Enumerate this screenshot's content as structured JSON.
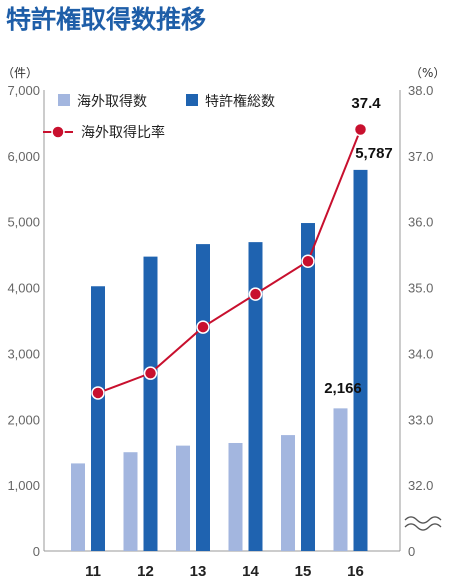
{
  "chart_data": {
    "type": "bar",
    "title": "特許権取得数推移",
    "left_unit": "（件）",
    "right_unit": "（%）",
    "categories": [
      "11",
      "12",
      "13",
      "14",
      "15",
      "16"
    ],
    "y_left_ticks": [
      "7,000",
      "6,000",
      "5,000",
      "4,000",
      "3,000",
      "2,000",
      "1,000",
      "0"
    ],
    "y_left_range": [
      0,
      7000
    ],
    "y_right_ticks": [
      "38.0",
      "37.0",
      "36.0",
      "35.0",
      "34.0",
      "33.0",
      "32.0",
      "0"
    ],
    "y_right_range": [
      31.0,
      38.0
    ],
    "y_right_break": true,
    "series": [
      {
        "name": "海外取得数",
        "type": "bar",
        "axis": "left",
        "color": "#a3b6df",
        "values": [
          1330,
          1500,
          1600,
          1640,
          1760,
          2166
        ]
      },
      {
        "name": "特許権総数",
        "type": "bar",
        "axis": "left",
        "color": "#1f63b0",
        "values": [
          4020,
          4470,
          4660,
          4690,
          4980,
          5787
        ]
      },
      {
        "name": "海外取得比率",
        "type": "line",
        "axis": "right",
        "color": "#c8102e",
        "values": [
          33.4,
          33.7,
          34.4,
          34.9,
          35.4,
          37.4
        ]
      }
    ],
    "data_labels": {
      "overseas_last": "2,166",
      "total_last": "5,787",
      "ratio_last": "37.4"
    },
    "legend_position": "top-left",
    "grid": false
  }
}
